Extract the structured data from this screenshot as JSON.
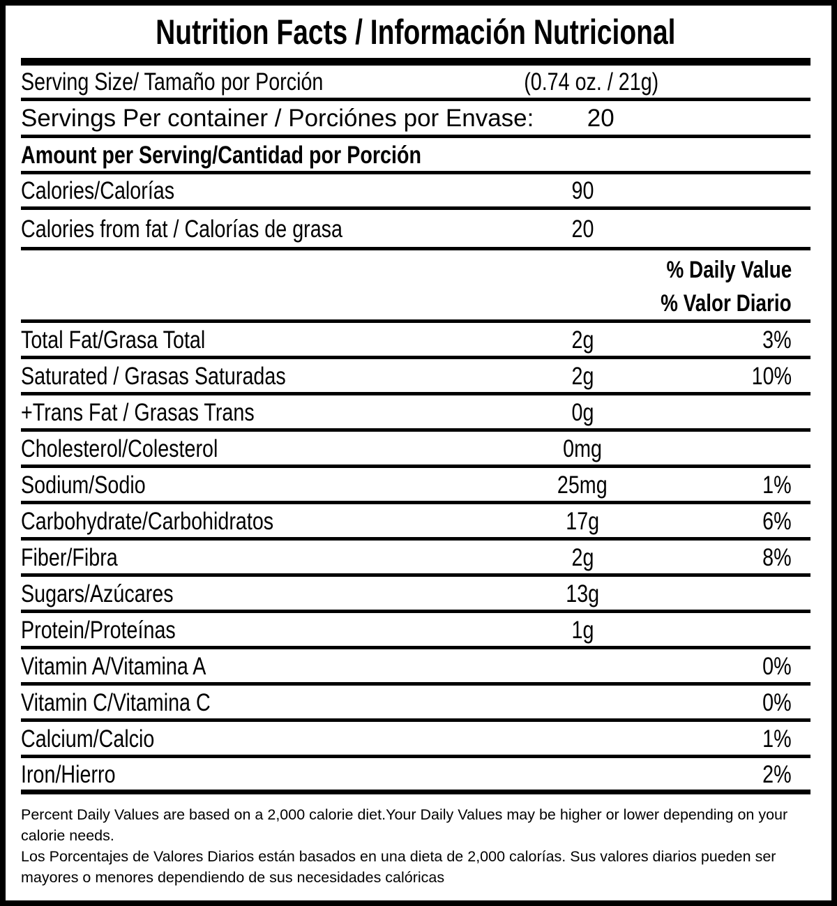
{
  "title": "Nutrition Facts / Información Nutricional",
  "rows": [
    {
      "label": "Serving Size/ Tamaño por Porción",
      "amount": "(0.74 oz. / 21g)",
      "pct": ""
    },
    {
      "label": "Servings Per container / Porciónes por Envase:",
      "amount": "20",
      "pct": ""
    },
    {
      "label": "Amount per Serving/Cantidad por Porción",
      "amount": "",
      "pct": ""
    },
    {
      "label": "Calories/Calorías",
      "amount": "90",
      "pct": ""
    },
    {
      "label": "Calories from fat / Calorías de grasa",
      "amount": "20",
      "pct": ""
    },
    {
      "label": "Total Fat/Grasa Total",
      "amount": "2g",
      "pct": "3%"
    },
    {
      "label": "Saturated / Grasas Saturadas",
      "amount": "2g",
      "pct": "10%"
    },
    {
      "label": "+Trans Fat / Grasas Trans",
      "amount": "0g",
      "pct": ""
    },
    {
      "label": "Cholesterol/Colesterol",
      "amount": "0mg",
      "pct": ""
    },
    {
      "label": "Sodium/Sodio",
      "amount": "25mg",
      "pct": "1%"
    },
    {
      "label": "Carbohydrate/Carbohidratos",
      "amount": "17g",
      "pct": "6%"
    },
    {
      "label": "Fiber/Fibra",
      "amount": "2g",
      "pct": "8%"
    },
    {
      "label": "Sugars/Azúcares",
      "amount": "13g",
      "pct": ""
    },
    {
      "label": "Protein/Proteínas",
      "amount": "1g",
      "pct": ""
    },
    {
      "label": "Vitamin A/Vitamina A",
      "amount": "",
      "pct": "0%"
    },
    {
      "label": "Vitamin C/Vitamina C",
      "amount": "",
      "pct": "0%"
    },
    {
      "label": "Calcium/Calcio",
      "amount": "",
      "pct": "1%"
    },
    {
      "label": "Iron/Hierro",
      "amount": "",
      "pct": "2%"
    }
  ],
  "dv_header": {
    "en": "% Daily Value",
    "es": "% Valor Diario"
  },
  "footnotes": {
    "en": "Percent Daily Values are based on a 2,000 calorie diet.Your Daily Values may be higher or lower depending on your calorie needs.",
    "es": "Los Porcentajes de Valores Diarios están basados en una dieta de 2,000 calorías. Sus valores diarios pueden ser mayores o menores dependiendo de sus necesidades calóricas"
  },
  "colors": {
    "ink": "#000000",
    "paper": "#ffffff"
  }
}
